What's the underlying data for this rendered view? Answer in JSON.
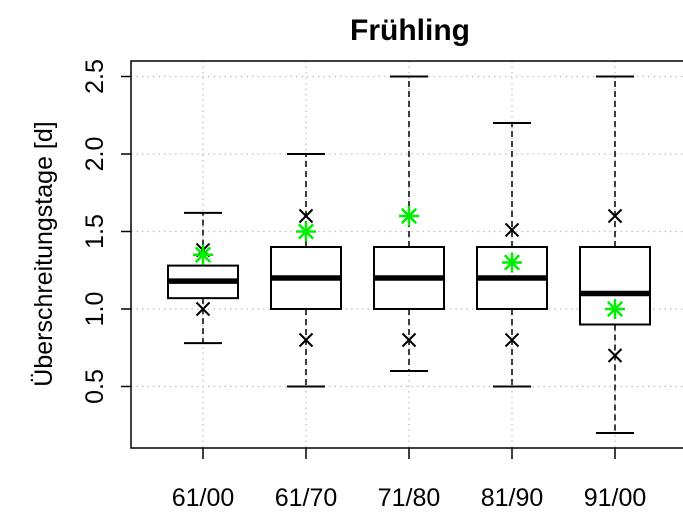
{
  "chart_data": {
    "type": "box",
    "title": "Frühling",
    "xlabel": "",
    "ylabel": "Überschreitungstage [d]",
    "ylim": [
      0.1,
      2.6
    ],
    "yticks": [
      "0.5",
      "1.0",
      "1.5",
      "2.0",
      "2.5"
    ],
    "ytick_values": [
      0.5,
      1.0,
      1.5,
      2.0,
      2.5
    ],
    "grid": true,
    "categories": [
      "61/00",
      "61/70",
      "71/80",
      "81/90",
      "91/00"
    ],
    "boxes": [
      {
        "whisker_low": 0.78,
        "q1": 1.07,
        "median": 1.18,
        "q3": 1.28,
        "whisker_high": 1.62,
        "cross_low": 1.0,
        "cross_high": 1.38,
        "star": 1.35
      },
      {
        "whisker_low": 0.5,
        "q1": 1.0,
        "median": 1.2,
        "q3": 1.4,
        "whisker_high": 2.0,
        "cross_low": 0.8,
        "cross_high": 1.6,
        "star": 1.5
      },
      {
        "whisker_low": 0.6,
        "q1": 1.0,
        "median": 1.2,
        "q3": 1.4,
        "whisker_high": 2.5,
        "cross_low": 0.8,
        "cross_high": 1.6,
        "star": 1.6
      },
      {
        "whisker_low": 0.5,
        "q1": 1.0,
        "median": 1.2,
        "q3": 1.4,
        "whisker_high": 2.2,
        "cross_low": 0.8,
        "cross_high": 1.51,
        "star": 1.3
      },
      {
        "whisker_low": 0.2,
        "q1": 0.9,
        "median": 1.1,
        "q3": 1.4,
        "whisker_high": 2.5,
        "cross_low": 0.7,
        "cross_high": 1.6,
        "star": 1.0
      }
    ],
    "colors": {
      "box": "#000000",
      "star": "#00ee00",
      "cross": "#000000",
      "grid": "#bfbfbf"
    }
  }
}
